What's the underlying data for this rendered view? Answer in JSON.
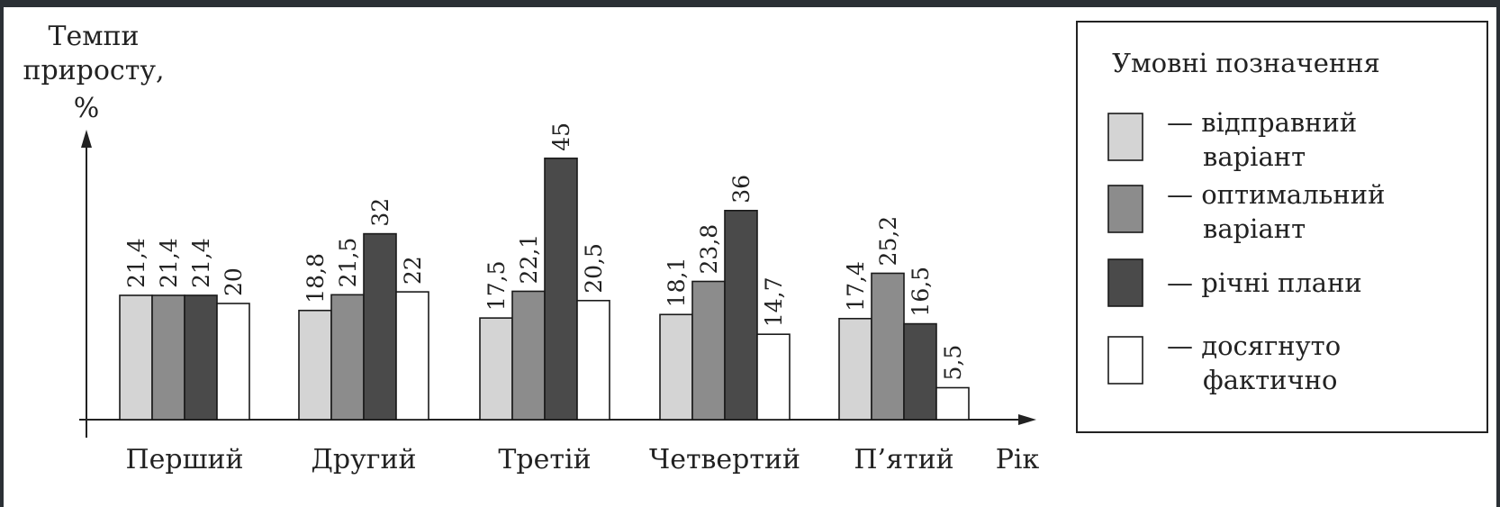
{
  "chart_data": {
    "type": "bar",
    "ylabel_lines": [
      "Темпи",
      "приросту,",
      "%"
    ],
    "xlabel": "Рік",
    "categories": [
      "Перший",
      "Другий",
      "Третій",
      "Четвертий",
      "П’ятий"
    ],
    "series": [
      {
        "name": "— відправний варіант",
        "color": "#d4d4d4",
        "values": [
          21.4,
          18.8,
          17.5,
          18.1,
          17.4
        ],
        "labels": [
          "21,4",
          "18,8",
          "17,5",
          "18,1",
          "17,4"
        ]
      },
      {
        "name": "— оптимальний варіант",
        "color": "#8c8c8c",
        "values": [
          21.4,
          21.5,
          22.1,
          23.8,
          25.2
        ],
        "labels": [
          "21,4",
          "21,5",
          "22,1",
          "23,8",
          "25,2"
        ]
      },
      {
        "name": "— річні плани",
        "color": "#4a4a4a",
        "values": [
          21.4,
          32,
          45,
          36,
          16.5
        ],
        "labels": [
          "21,4",
          "32",
          "45",
          "36",
          "16,5"
        ]
      },
      {
        "name": "— досягнуто фактично",
        "color": "#ffffff",
        "values": [
          20,
          22,
          20.5,
          14.7,
          5.5
        ],
        "labels": [
          "20",
          "22",
          "20,5",
          "14,7",
          "5,5"
        ]
      }
    ],
    "legend": {
      "title": "Умовні позначення",
      "entries": [
        [
          "— відправний",
          "варіант"
        ],
        [
          "— оптимальний",
          "варіант"
        ],
        [
          "— річні плани"
        ],
        [
          "— досягнуто",
          "фактично"
        ]
      ],
      "placement": "right"
    },
    "ylim": [
      0,
      50
    ],
    "grid": false
  }
}
